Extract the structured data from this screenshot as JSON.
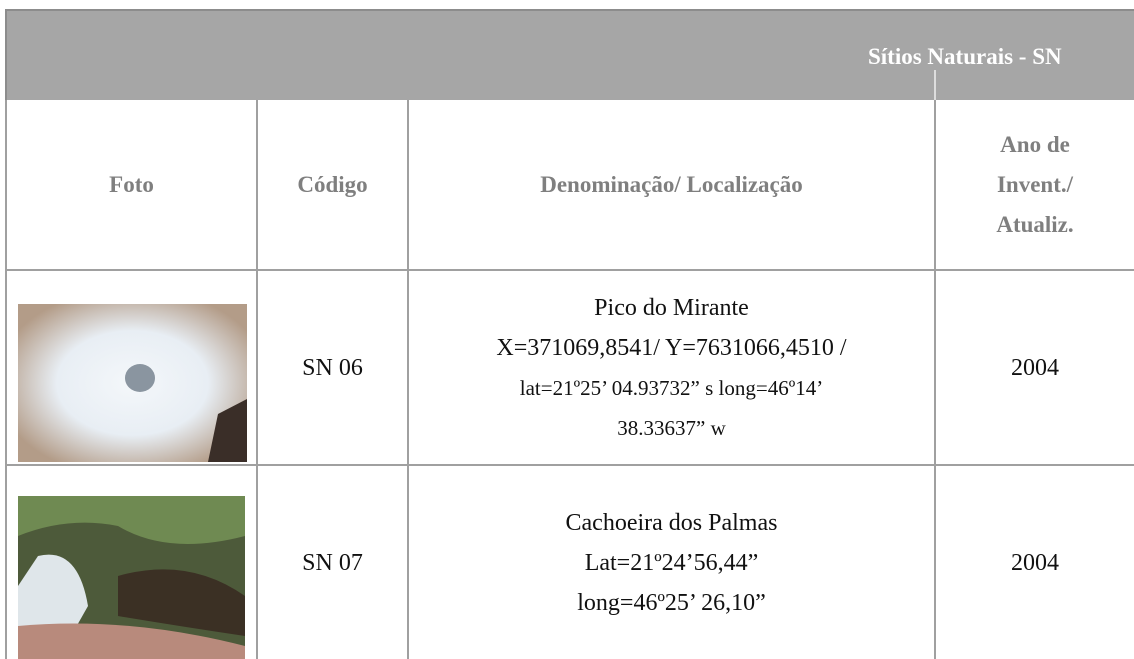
{
  "header": {
    "title": "Sítios Naturais - SN"
  },
  "table": {
    "columns": [
      "Foto",
      "Código",
      "Denominação/ Localização",
      [
        "Ano de",
        "Invent./",
        "Atualiz."
      ]
    ],
    "rows": [
      [
        "SN 06",
        [
          "Pico do Mirante",
          "X=371069,8541/ Y=7631066,4510 /",
          "lat=21º25’ 04.93732” s long=46º14’",
          "38.33637” w"
        ],
        "2004"
      ],
      [
        "SN 07",
        [
          "Cachoeira dos Palmas",
          "Lat=21º24’56,44”",
          "long=46º25’ 26,10”"
        ],
        "2004"
      ]
    ]
  }
}
